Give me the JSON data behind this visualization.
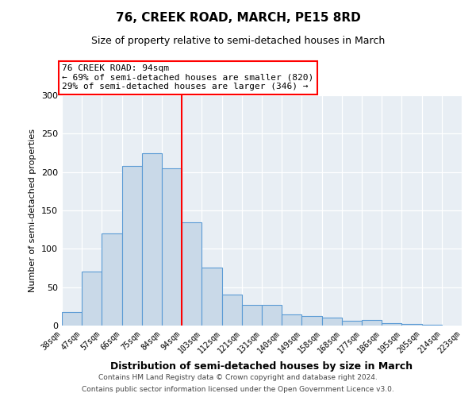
{
  "title": "76, CREEK ROAD, MARCH, PE15 8RD",
  "subtitle": "Size of property relative to semi-detached houses in March",
  "xlabel": "Distribution of semi-detached houses by size in March",
  "ylabel": "Number of semi-detached properties",
  "bar_labels": [
    "38sqm",
    "47sqm",
    "57sqm",
    "66sqm",
    "75sqm",
    "84sqm",
    "94sqm",
    "103sqm",
    "112sqm",
    "121sqm",
    "131sqm",
    "140sqm",
    "149sqm",
    "158sqm",
    "168sqm",
    "177sqm",
    "186sqm",
    "195sqm",
    "205sqm",
    "214sqm",
    "223sqm"
  ],
  "bar_values": [
    18,
    70,
    120,
    208,
    224,
    205,
    135,
    76,
    40,
    27,
    27,
    15,
    12,
    10,
    6,
    7,
    3,
    2,
    1,
    0
  ],
  "bar_color": "#c9d9e8",
  "bar_edge_color": "#5b9bd5",
  "property_line_index": 6,
  "annotation_text_line1": "76 CREEK ROAD: 94sqm",
  "annotation_text_line2": "← 69% of semi-detached houses are smaller (820)",
  "annotation_text_line3": "29% of semi-detached houses are larger (346) →",
  "ylim": [
    0,
    300
  ],
  "yticks": [
    0,
    50,
    100,
    150,
    200,
    250,
    300
  ],
  "footer_line1": "Contains HM Land Registry data © Crown copyright and database right 2024.",
  "footer_line2": "Contains public sector information licensed under the Open Government Licence v3.0.",
  "background_color": "#ffffff",
  "plot_background": "#e8eef4"
}
